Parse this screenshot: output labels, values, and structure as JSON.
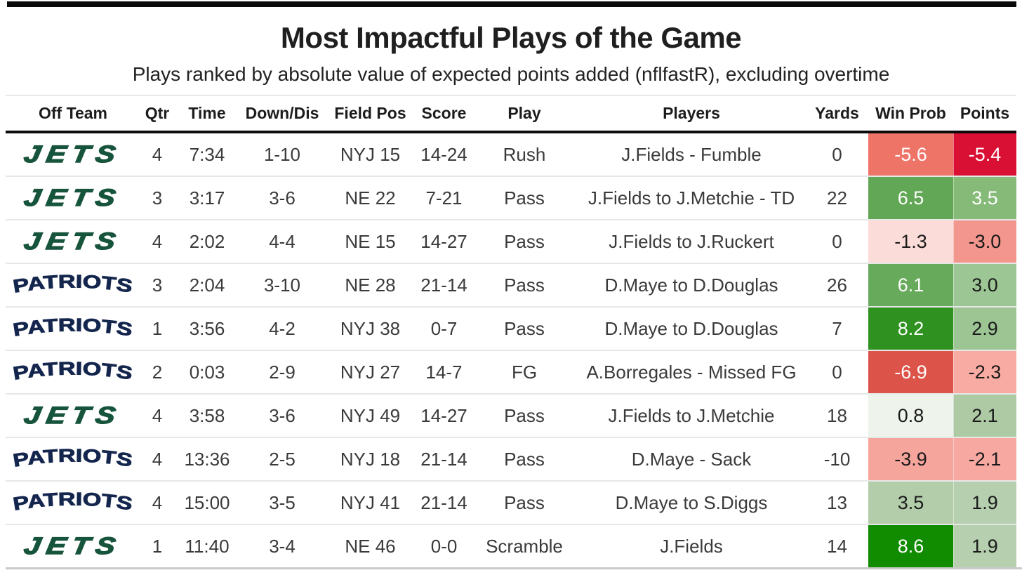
{
  "teams": {
    "jets": {
      "label": "JETS",
      "color": "#17543c"
    },
    "patriots": {
      "label": "PATRIOTS",
      "color": "#14264d"
    }
  },
  "chart_data": {
    "type": "table",
    "title": "Most Impactful Plays of the Game",
    "subtitle": "Plays ranked by absolute value of expected points added (nflfastR), excluding overtime",
    "columns": [
      "Off Team",
      "Qtr",
      "Time",
      "Down/Dis",
      "Field Pos",
      "Score",
      "Play",
      "Players",
      "Yards",
      "Win Prob",
      "Points"
    ],
    "rows": [
      {
        "team": "JETS",
        "qtr": "4",
        "time": "7:34",
        "down_dis": "1-10",
        "field_pos": "NYJ 15",
        "score": "14-24",
        "play": "Rush",
        "players": "J.Fields - Fumble",
        "yards": "0",
        "win_prob": "-5.6",
        "points": "-5.4",
        "win_prob_bg": "#ef7468",
        "win_prob_fg": "#ffffff",
        "points_bg": "#d90f34",
        "points_fg": "#ffffff"
      },
      {
        "team": "JETS",
        "qtr": "3",
        "time": "3:17",
        "down_dis": "3-6",
        "field_pos": "NE 22",
        "score": "7-21",
        "play": "Pass",
        "players": "J.Fields to J.Metchie - TD",
        "yards": "22",
        "win_prob": "6.5",
        "points": "3.5",
        "win_prob_bg": "#62a755",
        "win_prob_fg": "#ffffff",
        "points_bg": "#85ba78",
        "points_fg": "#ffffff"
      },
      {
        "team": "JETS",
        "qtr": "4",
        "time": "2:02",
        "down_dis": "4-4",
        "field_pos": "NE 15",
        "score": "14-27",
        "play": "Pass",
        "players": "J.Fields to J.Ruckert",
        "yards": "0",
        "win_prob": "-1.3",
        "points": "-3.0",
        "win_prob_bg": "#fbdcd8",
        "win_prob_fg": "#1a1a1a",
        "points_bg": "#f2968e",
        "points_fg": "#1a1a1a"
      },
      {
        "team": "PATRIOTS",
        "qtr": "3",
        "time": "2:04",
        "down_dis": "3-10",
        "field_pos": "NE 28",
        "score": "21-14",
        "play": "Pass",
        "players": "D.Maye to D.Douglas",
        "yards": "26",
        "win_prob": "6.1",
        "points": "3.0",
        "win_prob_bg": "#68aa5b",
        "win_prob_fg": "#ffffff",
        "points_bg": "#9cc694",
        "points_fg": "#1a1a1a"
      },
      {
        "team": "PATRIOTS",
        "qtr": "1",
        "time": "3:56",
        "down_dis": "4-2",
        "field_pos": "NYJ 38",
        "score": "0-7",
        "play": "Pass",
        "players": "D.Maye to D.Douglas",
        "yards": "7",
        "win_prob": "8.2",
        "points": "2.9",
        "win_prob_bg": "#2e9120",
        "win_prob_fg": "#ffffff",
        "points_bg": "#9dc594",
        "points_fg": "#1a1a1a"
      },
      {
        "team": "PATRIOTS",
        "qtr": "2",
        "time": "0:03",
        "down_dis": "2-9",
        "field_pos": "NYJ 27",
        "score": "14-7",
        "play": "FG",
        "players": "A.Borregales - Missed FG",
        "yards": "0",
        "win_prob": "-6.9",
        "points": "-2.3",
        "win_prob_bg": "#dc5349",
        "win_prob_fg": "#ffffff",
        "points_bg": "#f8aba3",
        "points_fg": "#1a1a1a"
      },
      {
        "team": "JETS",
        "qtr": "4",
        "time": "3:58",
        "down_dis": "3-6",
        "field_pos": "NYJ 49",
        "score": "14-27",
        "play": "Pass",
        "players": "J.Fields to J.Metchie",
        "yards": "18",
        "win_prob": "0.8",
        "points": "2.1",
        "win_prob_bg": "#eef4eb",
        "win_prob_fg": "#1a1a1a",
        "points_bg": "#aecaa5",
        "points_fg": "#1a1a1a"
      },
      {
        "team": "PATRIOTS",
        "qtr": "4",
        "time": "13:36",
        "down_dis": "2-5",
        "field_pos": "NYJ 18",
        "score": "21-14",
        "play": "Pass",
        "players": "D.Maye - Sack",
        "yards": "-10",
        "win_prob": "-3.9",
        "points": "-2.1",
        "win_prob_bg": "#f6a59d",
        "win_prob_fg": "#1a1a1a",
        "points_bg": "#f7a9a1",
        "points_fg": "#1a1a1a"
      },
      {
        "team": "PATRIOTS",
        "qtr": "4",
        "time": "15:00",
        "down_dis": "3-5",
        "field_pos": "NYJ 41",
        "score": "21-14",
        "play": "Pass",
        "players": "D.Maye to S.Diggs",
        "yards": "13",
        "win_prob": "3.5",
        "points": "1.9",
        "win_prob_bg": "#b3cdaa",
        "win_prob_fg": "#1a1a1a",
        "points_bg": "#b6cfae",
        "points_fg": "#1a1a1a"
      },
      {
        "team": "JETS",
        "qtr": "1",
        "time": "11:40",
        "down_dis": "3-4",
        "field_pos": "NE 46",
        "score": "0-0",
        "play": "Scramble",
        "players": "J.Fields",
        "yards": "14",
        "win_prob": "8.6",
        "points": "1.9",
        "win_prob_bg": "#118c00",
        "win_prob_fg": "#ffffff",
        "points_bg": "#b6cfae",
        "points_fg": "#1a1a1a"
      }
    ]
  }
}
